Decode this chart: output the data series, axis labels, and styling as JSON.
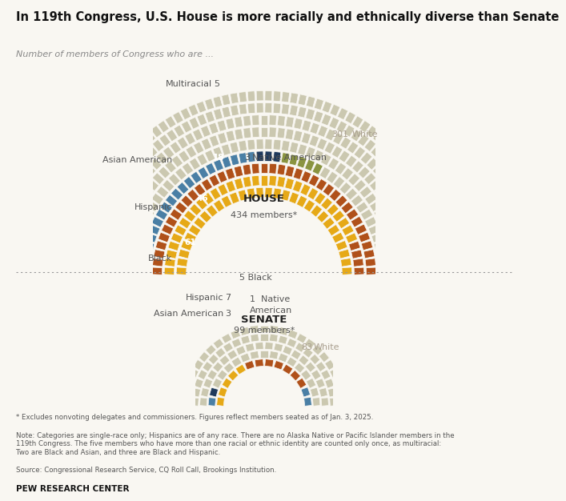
{
  "title": "In 119th Congress, U.S. House is more racially and ethnically diverse than Senate",
  "subtitle": "Number of members of Congress who are ...",
  "house": {
    "total": 434,
    "groups": [
      {
        "name": "White",
        "count": 301,
        "color": "#cbc8b0"
      },
      {
        "name": "Black",
        "count": 61,
        "color": "#e6a917"
      },
      {
        "name": "Hispanic",
        "count": 46,
        "color": "#b0511a"
      },
      {
        "name": "Asian American",
        "count": 18,
        "color": "#4a7fa5"
      },
      {
        "name": "Native American",
        "count": 3,
        "color": "#1f3a5c"
      },
      {
        "name": "Multiracial",
        "count": 5,
        "color": "#8a9440"
      }
    ]
  },
  "senate": {
    "total": 99,
    "groups": [
      {
        "name": "White",
        "count": 83,
        "color": "#cbc8b0"
      },
      {
        "name": "Black",
        "count": 5,
        "color": "#e6a917"
      },
      {
        "name": "Hispanic",
        "count": 7,
        "color": "#b0511a"
      },
      {
        "name": "Asian American",
        "count": 3,
        "color": "#4a7fa5"
      },
      {
        "name": "Native American",
        "count": 1,
        "color": "#1f3a5c"
      }
    ]
  },
  "footnote1": "* Excludes nonvoting delegates and commissioners. Figures reflect members seated as of Jan. 3, 2025.",
  "footnote2": "Note: Categories are single-race only; Hispanics are of any race. There are no Alaska Native or Pacific Islander members in the\n119th Congress. The five members who have more than one racial or ethnic identity are counted only once, as multiracial:\nTwo are Black and Asian, and three are Black and Hispanic.",
  "footnote3": "Source: Congressional Research Service, CQ Roll Call, Brookings Institution.",
  "source_label": "PEW RESEARCH CENTER",
  "bg_color": "#f9f7f2",
  "seat_edge_color": "#f9f7f2"
}
